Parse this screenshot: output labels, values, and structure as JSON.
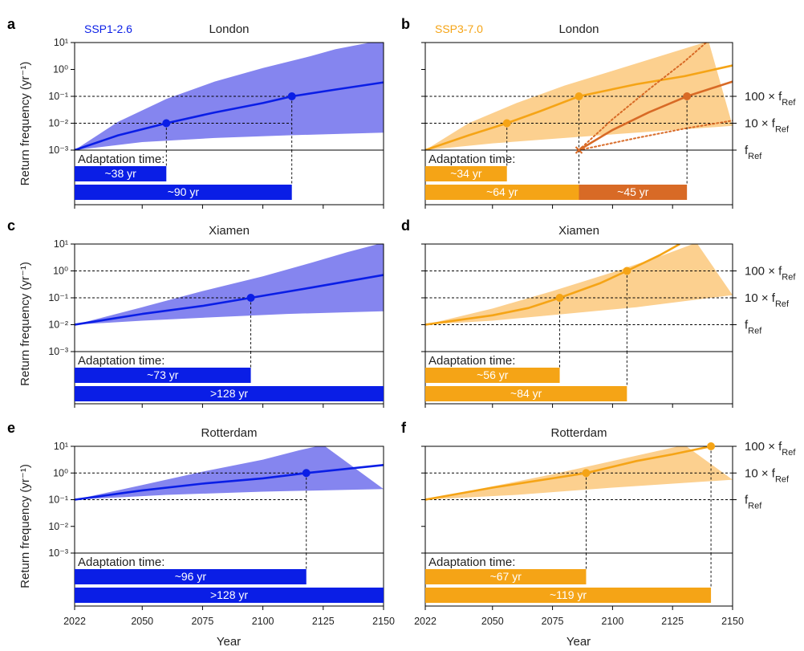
{
  "figure": {
    "ylabel": "Return frequency (yr⁻¹)",
    "xlabel": "Year",
    "ytick_labels": [
      "10¹",
      "10⁰",
      "10⁻¹",
      "10⁻²",
      "10⁻³"
    ],
    "xtick_labels": [
      "2022",
      "2050",
      "2075",
      "2100",
      "2125",
      "2150"
    ],
    "adaptation_label": "Adaptation time:",
    "right_labels": {
      "hundred": "100 × f",
      "ten": "10 × f",
      "one": "f",
      "sub": "Ref"
    },
    "colors": {
      "ssp126": "#0a1ee6",
      "ssp126_band": "#8585ef",
      "ssp370": "#f5a416",
      "ssp370_band": "#fcd08f",
      "ssp370_dark": "#d86a26"
    }
  },
  "chart_data": [
    {
      "panel": "a",
      "type": "line",
      "title": "London",
      "scenario": "SSP1-2.6",
      "color_key": "ssp126",
      "x_range": [
        2022,
        2150
      ],
      "y_log_range": [
        -3,
        1
      ],
      "f_ref_exp": -3,
      "band_upper": [
        [
          2022,
          -3
        ],
        [
          2040,
          -1.95
        ],
        [
          2060,
          -1.1
        ],
        [
          2080,
          -0.45
        ],
        [
          2100,
          0.05
        ],
        [
          2120,
          0.5
        ],
        [
          2130,
          0.75
        ],
        [
          2150,
          1.1
        ]
      ],
      "band_lower": [
        [
          2022,
          -3
        ],
        [
          2050,
          -2.7
        ],
        [
          2080,
          -2.55
        ],
        [
          2110,
          -2.45
        ],
        [
          2150,
          -2.35
        ]
      ],
      "median": [
        [
          2022,
          -3
        ],
        [
          2040,
          -2.45
        ],
        [
          2060,
          -2.0
        ],
        [
          2080,
          -1.6
        ],
        [
          2100,
          -1.25
        ],
        [
          2112,
          -1.0
        ],
        [
          2130,
          -0.75
        ],
        [
          2150,
          -0.48
        ]
      ],
      "markers": [
        [
          2060,
          -2
        ],
        [
          2112,
          -1
        ]
      ],
      "dashed_levels": [
        -2,
        -1
      ],
      "bars": [
        {
          "label": "~38 yr",
          "start": 2022,
          "end": 2060
        },
        {
          "label": "~90 yr",
          "start": 2022,
          "end": 2112
        }
      ]
    },
    {
      "panel": "b",
      "type": "line",
      "title": "London",
      "scenario": "SSP3-7.0",
      "color_key": "ssp370",
      "x_range": [
        2022,
        2150
      ],
      "y_log_range": [
        -3,
        1
      ],
      "f_ref_exp": -3,
      "band_upper": [
        [
          2022,
          -3
        ],
        [
          2040,
          -2.0
        ],
        [
          2060,
          -1.25
        ],
        [
          2080,
          -0.6
        ],
        [
          2100,
          -0.05
        ],
        [
          2120,
          0.5
        ],
        [
          2140,
          1.05
        ]
      ],
      "band_lower": [
        [
          2022,
          -3
        ],
        [
          2050,
          -2.75
        ],
        [
          2080,
          -2.55
        ],
        [
          2110,
          -2.35
        ],
        [
          2150,
          -2.1
        ]
      ],
      "median": [
        [
          2022,
          -3
        ],
        [
          2040,
          -2.45
        ],
        [
          2056,
          -2.0
        ],
        [
          2070,
          -1.55
        ],
        [
          2086,
          -1.0
        ],
        [
          2110,
          -0.55
        ],
        [
          2130,
          -0.25
        ],
        [
          2150,
          0.15
        ]
      ],
      "markers": [
        [
          2056,
          -2
        ],
        [
          2086,
          -1
        ]
      ],
      "dashed_levels": [
        -2,
        -1
      ],
      "secondary": {
        "color_key": "ssp370_dark",
        "origin": [
          2086,
          -3
        ],
        "solid": [
          [
            2086,
            -3
          ],
          [
            2100,
            -2.25
          ],
          [
            2115,
            -1.6
          ],
          [
            2131,
            -1.0
          ],
          [
            2150,
            -0.45
          ]
        ],
        "dotted_upper": [
          [
            2086,
            -3
          ],
          [
            2100,
            -1.85
          ],
          [
            2115,
            -0.75
          ],
          [
            2130,
            0.3
          ],
          [
            2139,
            1
          ]
        ],
        "dotted_lower": [
          [
            2086,
            -3
          ],
          [
            2110,
            -2.55
          ],
          [
            2130,
            -2.2
          ],
          [
            2150,
            -1.9
          ]
        ],
        "marker": [
          2131,
          -1
        ]
      },
      "bars": [
        {
          "label": "~34 yr",
          "start": 2022,
          "end": 2056
        },
        {
          "label": "~64 yr",
          "start": 2022,
          "end": 2086
        },
        {
          "label": "~45 yr",
          "start": 2086,
          "end": 2131,
          "dark": true
        }
      ]
    },
    {
      "panel": "c",
      "type": "line",
      "title": "Xiamen",
      "color_key": "ssp126",
      "x_range": [
        2022,
        2150
      ],
      "y_log_range": [
        -3,
        1
      ],
      "f_ref_exp": -2,
      "band_upper": [
        [
          2022,
          -2
        ],
        [
          2050,
          -1.35
        ],
        [
          2075,
          -0.75
        ],
        [
          2100,
          -0.2
        ],
        [
          2120,
          0.3
        ],
        [
          2135,
          0.7
        ],
        [
          2150,
          1.05
        ]
      ],
      "band_lower": [
        [
          2022,
          -2
        ],
        [
          2050,
          -1.85
        ],
        [
          2080,
          -1.72
        ],
        [
          2110,
          -1.6
        ],
        [
          2150,
          -1.5
        ]
      ],
      "median": [
        [
          2022,
          -2
        ],
        [
          2050,
          -1.6
        ],
        [
          2075,
          -1.3
        ],
        [
          2095,
          -1.0
        ],
        [
          2120,
          -0.62
        ],
        [
          2150,
          -0.15
        ]
      ],
      "markers": [
        [
          2095,
          -1
        ]
      ],
      "dashed_levels": [
        -1,
        0
      ],
      "bars": [
        {
          "label": "~73 yr",
          "start": 2022,
          "end": 2095
        },
        {
          "label": ">128 yr",
          "start": 2022,
          "end": 2150
        }
      ]
    },
    {
      "panel": "d",
      "type": "line",
      "title": "Xiamen",
      "color_key": "ssp370",
      "x_range": [
        2022,
        2150
      ],
      "y_log_range": [
        -3,
        1
      ],
      "f_ref_exp": -2,
      "band_upper": [
        [
          2022,
          -2
        ],
        [
          2050,
          -1.4
        ],
        [
          2075,
          -0.75
        ],
        [
          2100,
          -0.05
        ],
        [
          2120,
          0.55
        ],
        [
          2135,
          1.05
        ]
      ],
      "band_lower": [
        [
          2022,
          -2
        ],
        [
          2050,
          -1.85
        ],
        [
          2080,
          -1.6
        ],
        [
          2110,
          -1.35
        ],
        [
          2150,
          -0.9
        ]
      ],
      "median": [
        [
          2022,
          -2
        ],
        [
          2050,
          -1.65
        ],
        [
          2065,
          -1.38
        ],
        [
          2078,
          -1.0
        ],
        [
          2095,
          -0.45
        ],
        [
          2106,
          0
        ],
        [
          2120,
          0.6
        ],
        [
          2128,
          1.0
        ]
      ],
      "markers": [
        [
          2078,
          -1
        ],
        [
          2106,
          0
        ]
      ],
      "dashed_levels": [
        -2,
        -1,
        0
      ],
      "bars": [
        {
          "label": "~56 yr",
          "start": 2022,
          "end": 2078
        },
        {
          "label": "~84 yr",
          "start": 2022,
          "end": 2106
        }
      ]
    },
    {
      "panel": "e",
      "type": "line",
      "title": "Rotterdam",
      "color_key": "ssp126",
      "x_range": [
        2022,
        2150
      ],
      "y_log_range": [
        -3,
        1
      ],
      "f_ref_exp": -1,
      "band_upper": [
        [
          2022,
          -1
        ],
        [
          2050,
          -0.45
        ],
        [
          2075,
          0.05
        ],
        [
          2100,
          0.5
        ],
        [
          2115,
          0.85
        ],
        [
          2125,
          1.05
        ]
      ],
      "band_lower": [
        [
          2022,
          -1
        ],
        [
          2060,
          -0.82
        ],
        [
          2100,
          -0.7
        ],
        [
          2150,
          -0.6
        ]
      ],
      "median": [
        [
          2022,
          -1
        ],
        [
          2050,
          -0.65
        ],
        [
          2075,
          -0.4
        ],
        [
          2100,
          -0.2
        ],
        [
          2118,
          0
        ],
        [
          2150,
          0.3
        ]
      ],
      "markers": [
        [
          2118,
          0
        ]
      ],
      "dashed_levels": [
        -1,
        0,
        1
      ],
      "bars": [
        {
          "label": "~96 yr",
          "start": 2022,
          "end": 2118
        },
        {
          "label": ">128 yr",
          "start": 2022,
          "end": 2150
        }
      ]
    },
    {
      "panel": "f",
      "type": "line",
      "title": "Rotterdam",
      "color_key": "ssp370",
      "x_range": [
        2022,
        2150
      ],
      "y_log_range": [
        -3,
        1
      ],
      "f_ref_exp": -1,
      "band_upper": [
        [
          2022,
          -1
        ],
        [
          2050,
          -0.5
        ],
        [
          2075,
          -0.05
        ],
        [
          2100,
          0.45
        ],
        [
          2120,
          0.85
        ],
        [
          2130,
          1.05
        ]
      ],
      "band_lower": [
        [
          2022,
          -1
        ],
        [
          2060,
          -0.82
        ],
        [
          2100,
          -0.55
        ],
        [
          2150,
          -0.25
        ]
      ],
      "median": [
        [
          2022,
          -1
        ],
        [
          2050,
          -0.55
        ],
        [
          2075,
          -0.2
        ],
        [
          2089,
          0
        ],
        [
          2110,
          0.45
        ],
        [
          2125,
          0.7
        ],
        [
          2141,
          1.0
        ]
      ],
      "markers": [
        [
          2089,
          0
        ],
        [
          2141,
          1
        ]
      ],
      "dashed_levels": [
        -1,
        0,
        1
      ],
      "bars": [
        {
          "label": "~67 yr",
          "start": 2022,
          "end": 2089
        },
        {
          "label": "~119 yr",
          "start": 2022,
          "end": 2141
        }
      ]
    }
  ]
}
